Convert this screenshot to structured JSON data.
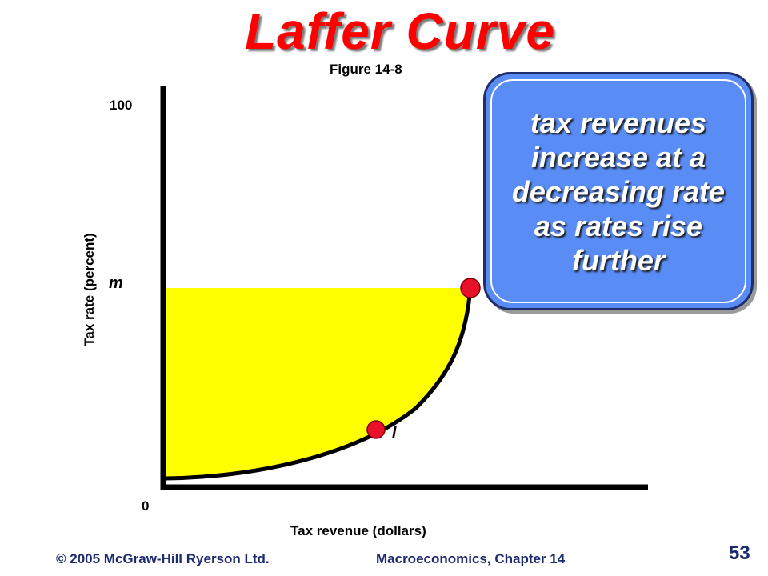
{
  "slide": {
    "title": "Laffer Curve",
    "figure_label": "Figure 14-8",
    "callout_text": "tax revenues increase at a decreasing rate as rates rise further",
    "page_number": "53"
  },
  "footer": {
    "copyright": "© 2005 McGraw-Hill Ryerson Ltd.",
    "course": "Macroeconomics, Chapter 14"
  },
  "chart_data": {
    "type": "area",
    "xlabel": "Tax revenue (dollars)",
    "ylabel": "Tax rate (percent)",
    "y_ticks": {
      "top": "100",
      "origin": "0",
      "marker": "m"
    },
    "points": [
      {
        "label": "l"
      },
      {
        "label": ""
      }
    ],
    "colors": {
      "fill": "#ffff00",
      "curve": "#000000",
      "point": "#e8102a",
      "axis": "#000000"
    }
  }
}
